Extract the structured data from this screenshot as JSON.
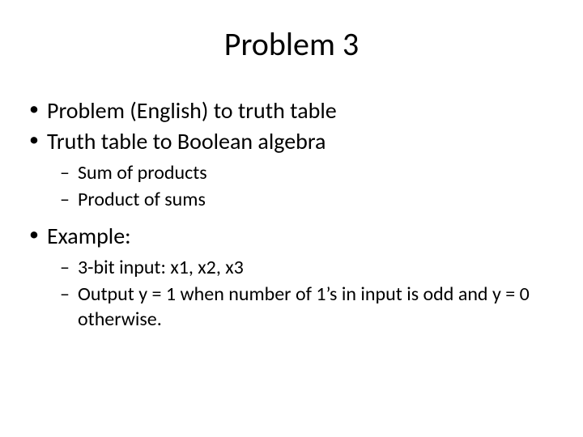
{
  "title": "Problem 3",
  "bullets": {
    "b1": "Problem (English) to truth table",
    "b2": "Truth table to Boolean algebra",
    "b2_sub": {
      "s1": "Sum of products",
      "s2": "Product of sums"
    },
    "b3": "Example:",
    "b3_sub": {
      "s1": "3-bit input: x1, x2, x3",
      "s2": "Output y = 1 when number of 1’s in input is odd and y = 0 otherwise."
    }
  },
  "colors": {
    "background": "#ffffff",
    "text": "#000000"
  },
  "fonts": {
    "title_size_pt": 40,
    "lvl1_size_pt": 28,
    "lvl2_size_pt": 24,
    "family": "Calibri"
  }
}
